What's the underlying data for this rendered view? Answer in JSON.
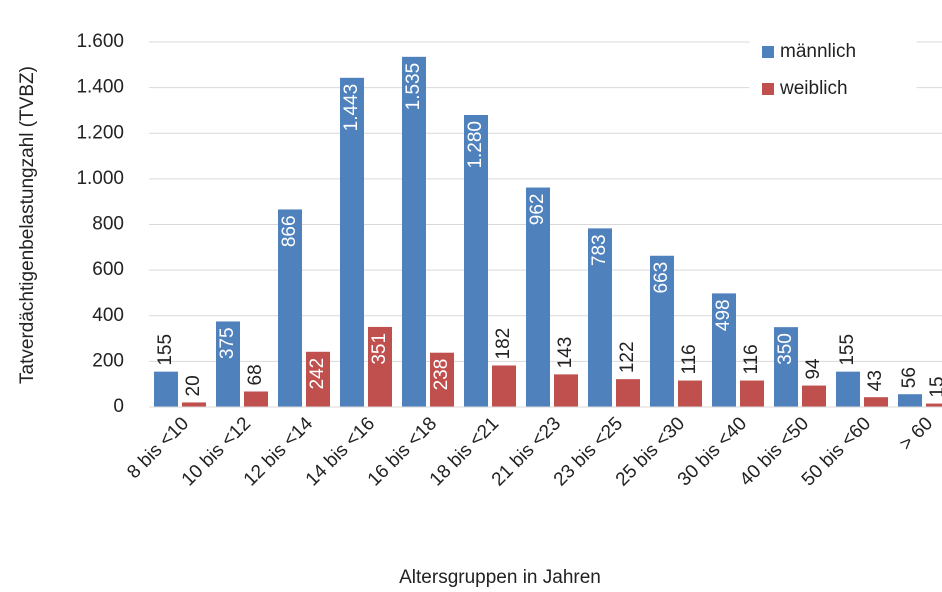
{
  "chart_data": {
    "type": "bar",
    "x_label": "Altersgruppen in Jahren",
    "y_label": "Tatverdächtigenbelastungzahl (TVBZ)",
    "categories": [
      "8 bis <10",
      "10 bis <12",
      "12 bis <14",
      "14 bis <16",
      "16 bis <18",
      "18 bis <21",
      "21 bis <23",
      "23 bis <25",
      "25 bis <30",
      "30 bis <40",
      "40 bis <50",
      "50 bis <60",
      "> 60"
    ],
    "series": [
      {
        "name": "männlich",
        "color": "#4f81bd",
        "values": [
          155,
          375,
          866,
          1443,
          1535,
          1280,
          962,
          783,
          663,
          498,
          350,
          155,
          56
        ],
        "value_labels": [
          "155",
          "375",
          "866",
          "1.443",
          "1.535",
          "1.280",
          "962",
          "783",
          "663",
          "498",
          "350",
          "155",
          "56"
        ]
      },
      {
        "name": "weiblich",
        "color": "#c0504d",
        "values": [
          20,
          68,
          242,
          351,
          238,
          182,
          143,
          122,
          116,
          116,
          94,
          43,
          15
        ],
        "value_labels": [
          "20",
          "68",
          "242",
          "351",
          "238",
          "182",
          "143",
          "122",
          "116",
          "116",
          "94",
          "43",
          "15"
        ]
      }
    ],
    "ylim": [
      0,
      1600
    ],
    "yticks": [
      0,
      200,
      400,
      600,
      800,
      {
        "value": 1000,
        "label": "1.000"
      },
      {
        "value": 1200,
        "label": "1.200"
      },
      {
        "value": 1400,
        "label": "1.400"
      },
      {
        "value": 1600,
        "label": "1.600"
      }
    ],
    "grid": true,
    "legend": "upper right"
  }
}
